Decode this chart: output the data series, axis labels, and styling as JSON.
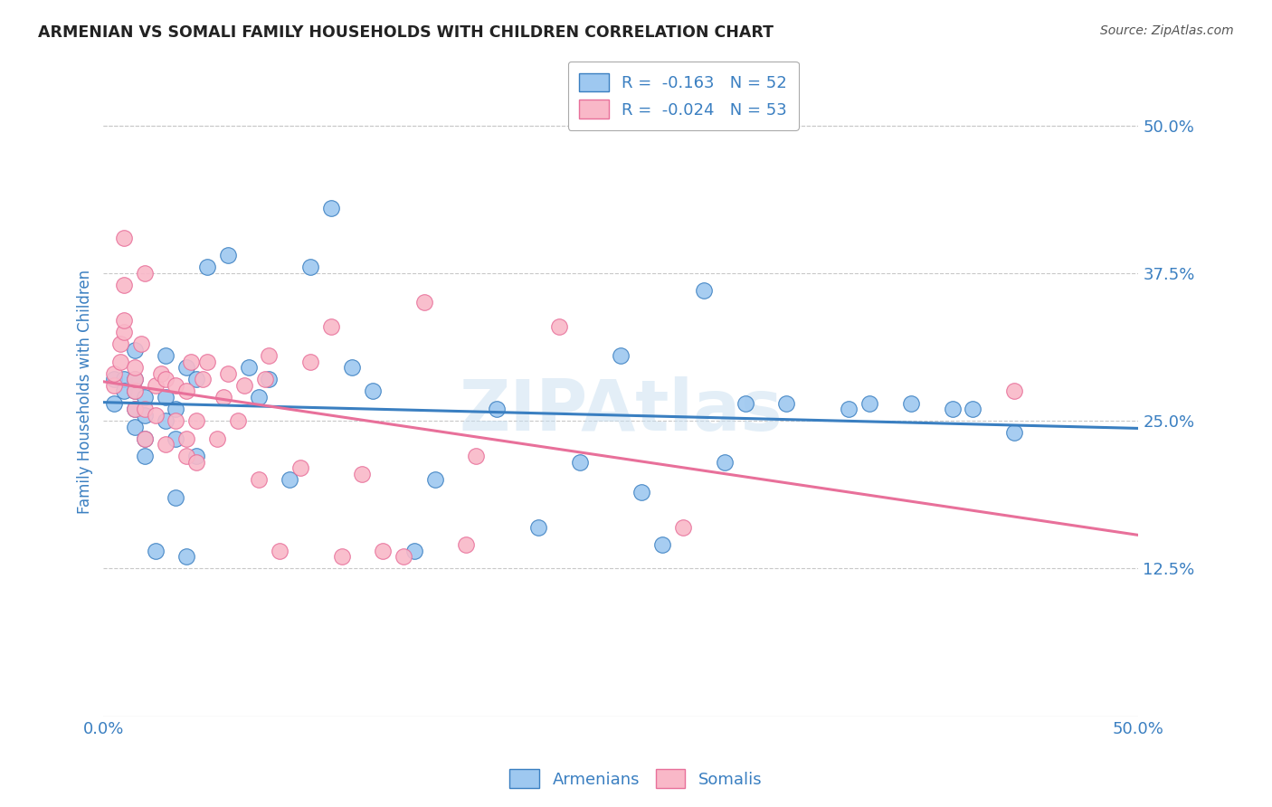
{
  "title": "ARMENIAN VS SOMALI FAMILY HOUSEHOLDS WITH CHILDREN CORRELATION CHART",
  "source": "Source: ZipAtlas.com",
  "ylabel": "Family Households with Children",
  "xlim": [
    0.0,
    0.5
  ],
  "ylim": [
    0.0,
    0.55
  ],
  "x_tick_positions": [
    0.0,
    0.1,
    0.2,
    0.3,
    0.4,
    0.5
  ],
  "x_tick_labels": [
    "0.0%",
    "",
    "",
    "",
    "",
    "50.0%"
  ],
  "y_ticks_right": [
    0.5,
    0.375,
    0.25,
    0.125
  ],
  "y_tick_labels_right": [
    "50.0%",
    "37.5%",
    "25.0%",
    "12.5%"
  ],
  "armenian_R": -0.163,
  "armenian_N": 52,
  "somali_R": -0.024,
  "somali_N": 53,
  "armenian_color": "#9ec8f0",
  "somali_color": "#f9b8c8",
  "line_armenian_color": "#3a7fc1",
  "line_somali_color": "#e8709a",
  "legend_label_armenian": "Armenians",
  "legend_label_somali": "Somalis",
  "background_color": "#ffffff",
  "grid_color": "#c8c8c8",
  "title_color": "#222222",
  "axis_label_color": "#3a7fc1",
  "watermark": "ZIPAtlas",
  "armenian_x": [
    0.005,
    0.005,
    0.01,
    0.01,
    0.015,
    0.015,
    0.015,
    0.015,
    0.015,
    0.02,
    0.02,
    0.02,
    0.02,
    0.025,
    0.03,
    0.03,
    0.03,
    0.035,
    0.035,
    0.035,
    0.04,
    0.04,
    0.045,
    0.045,
    0.05,
    0.06,
    0.07,
    0.075,
    0.08,
    0.09,
    0.1,
    0.11,
    0.12,
    0.13,
    0.15,
    0.16,
    0.19,
    0.21,
    0.23,
    0.25,
    0.26,
    0.27,
    0.29,
    0.3,
    0.31,
    0.33,
    0.36,
    0.37,
    0.39,
    0.41,
    0.42,
    0.44
  ],
  "armenian_y": [
    0.285,
    0.265,
    0.285,
    0.275,
    0.31,
    0.285,
    0.275,
    0.26,
    0.245,
    0.27,
    0.255,
    0.235,
    0.22,
    0.14,
    0.305,
    0.27,
    0.25,
    0.26,
    0.235,
    0.185,
    0.135,
    0.295,
    0.285,
    0.22,
    0.38,
    0.39,
    0.295,
    0.27,
    0.285,
    0.2,
    0.38,
    0.43,
    0.295,
    0.275,
    0.14,
    0.2,
    0.26,
    0.16,
    0.215,
    0.305,
    0.19,
    0.145,
    0.36,
    0.215,
    0.265,
    0.265,
    0.26,
    0.265,
    0.265,
    0.26,
    0.26,
    0.24
  ],
  "somali_x": [
    0.005,
    0.005,
    0.008,
    0.008,
    0.01,
    0.01,
    0.01,
    0.01,
    0.015,
    0.015,
    0.015,
    0.015,
    0.018,
    0.02,
    0.02,
    0.02,
    0.025,
    0.025,
    0.028,
    0.03,
    0.03,
    0.035,
    0.035,
    0.04,
    0.04,
    0.04,
    0.042,
    0.045,
    0.045,
    0.048,
    0.05,
    0.055,
    0.058,
    0.06,
    0.065,
    0.068,
    0.075,
    0.078,
    0.08,
    0.085,
    0.095,
    0.1,
    0.11,
    0.115,
    0.125,
    0.135,
    0.145,
    0.155,
    0.175,
    0.18,
    0.22,
    0.28,
    0.44
  ],
  "somali_y": [
    0.28,
    0.29,
    0.3,
    0.315,
    0.325,
    0.335,
    0.365,
    0.405,
    0.26,
    0.275,
    0.285,
    0.295,
    0.315,
    0.235,
    0.26,
    0.375,
    0.255,
    0.28,
    0.29,
    0.23,
    0.285,
    0.25,
    0.28,
    0.22,
    0.235,
    0.275,
    0.3,
    0.215,
    0.25,
    0.285,
    0.3,
    0.235,
    0.27,
    0.29,
    0.25,
    0.28,
    0.2,
    0.285,
    0.305,
    0.14,
    0.21,
    0.3,
    0.33,
    0.135,
    0.205,
    0.14,
    0.135,
    0.35,
    0.145,
    0.22,
    0.33,
    0.16,
    0.275
  ]
}
